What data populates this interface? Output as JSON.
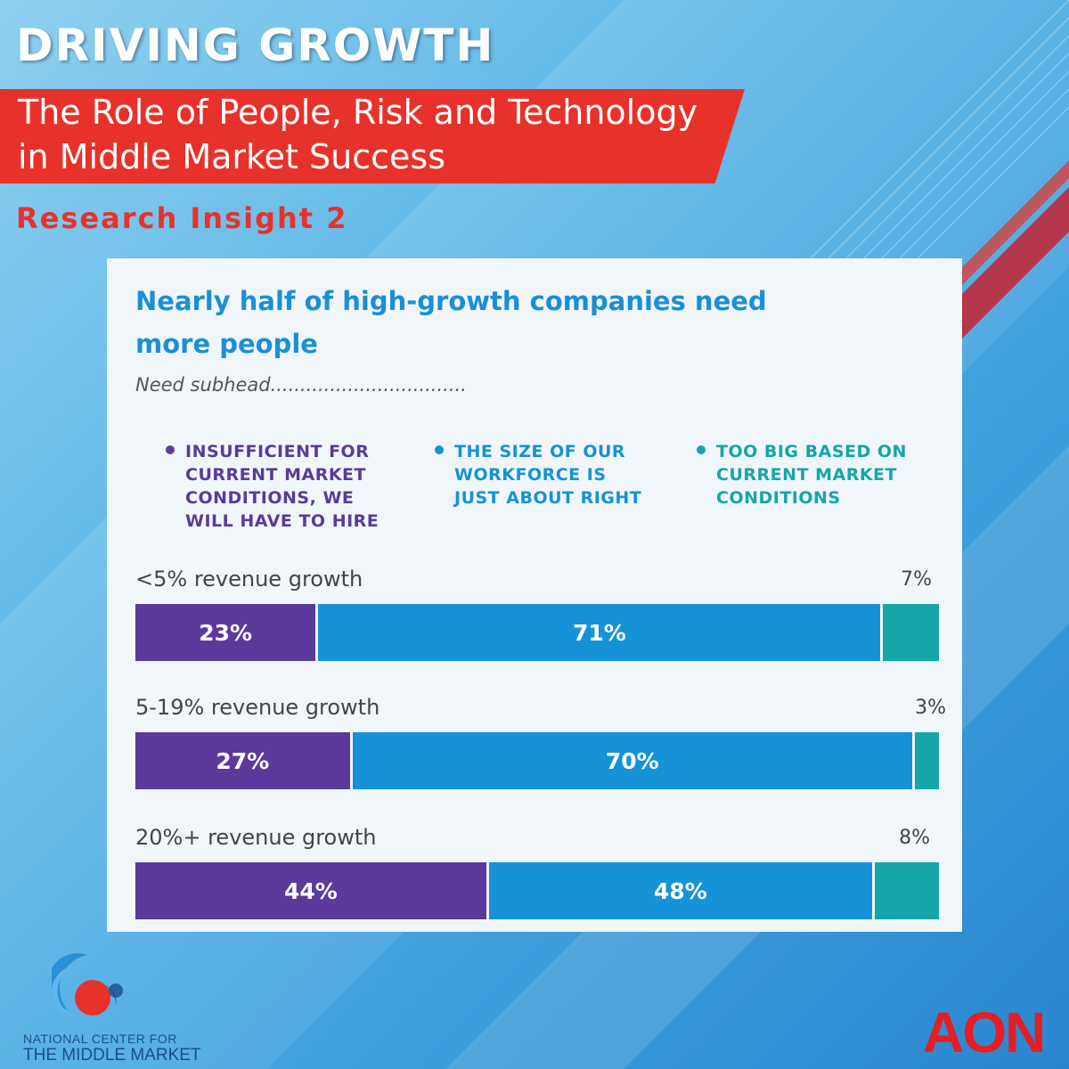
{
  "header": {
    "title": "DRIVING GROWTH",
    "banner_line1": "The Role of People, Risk and Technology",
    "banner_line2": "in Middle Market Success",
    "insight": "Research Insight 2"
  },
  "colors": {
    "hire": "#5b3a9b",
    "right": "#1592d8",
    "too_big": "#14a6a9",
    "brand_red": "#e8312a"
  },
  "chart_data": {
    "type": "bar",
    "orientation": "horizontal-stacked",
    "title": "Nearly half of high-growth companies need more people",
    "subtitle": "Need subhead.................................",
    "legend_placement": "top",
    "categories": [
      "<5% revenue growth",
      "5-19% revenue growth",
      "20%+ revenue growth"
    ],
    "series": [
      {
        "name": "INSUFFICIENT FOR CURRENT MARKET CONDITIONS, WE WILL HAVE TO HIRE",
        "values": [
          23,
          27,
          44
        ]
      },
      {
        "name": "THE SIZE OF OUR WORKFORCE IS JUST ABOUT RIGHT",
        "values": [
          71,
          70,
          48
        ]
      },
      {
        "name": "TOO BIG BASED ON CURRENT MARKET CONDITIONS",
        "values": [
          7,
          3,
          8
        ]
      }
    ],
    "value_labels": [
      [
        "23%",
        "71%",
        "7%"
      ],
      [
        "27%",
        "70%",
        "3%"
      ],
      [
        "44%",
        "48%",
        "8%"
      ]
    ],
    "legend_lines": [
      [
        "INSUFFICIENT FOR",
        "CURRENT MARKET",
        "CONDITIONS, WE",
        "WILL HAVE TO HIRE"
      ],
      [
        "THE SIZE OF OUR",
        "WORKFORCE IS",
        "JUST ABOUT RIGHT"
      ],
      [
        "TOO BIG BASED ON",
        "CURRENT MARKET",
        "CONDITIONS"
      ]
    ]
  },
  "footer": {
    "ncmm_line1": "NATIONAL CENTER FOR",
    "ncmm_line2": "THE MIDDLE MARKET",
    "aon_logo": "AON"
  }
}
